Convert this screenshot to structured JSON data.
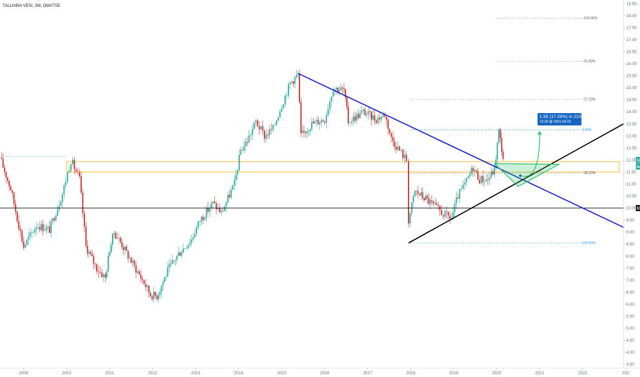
{
  "header": {
    "ticker": "TALLINNA VESI, 2W, OMXTSE"
  },
  "chart_data": {
    "type": "candlestick",
    "title": "TALLINNA VESI, 2W, OMXTSE",
    "x_ticks": [
      "2009",
      "2010",
      "2011",
      "2012",
      "2013",
      "2014",
      "2015",
      "2016",
      "2017",
      "2018",
      "2019",
      "2020",
      "2021",
      "2022",
      "202"
    ],
    "y_ticks": [
      "18.50",
      "18.00",
      "17.50",
      "17.00",
      "16.50",
      "16.00",
      "15.50",
      "15.00",
      "14.50",
      "14.00",
      "13.50",
      "13.00",
      "12.50",
      "12.00",
      "11.50",
      "11.00",
      "10.50",
      "10.00",
      "9.50",
      "9.00",
      "8.50",
      "8.00",
      "7.50",
      "7.00",
      "6.50",
      "6.00",
      "5.50",
      "5.00",
      "4.50",
      "4.00",
      "3.50"
    ],
    "ylim": [
      3.35,
      18.65
    ],
    "xlim": [
      2008.45,
      2022.95
    ],
    "colors": {
      "up": "#26a69a",
      "down": "#c62828",
      "trend_blue": "#1a23c8",
      "trend_black": "#000000",
      "zone": "#f2b51b",
      "green": "#2fbf71",
      "callout": "#1565c0"
    },
    "key_points": [
      [
        2008.45,
        12.1
      ],
      [
        2008.7,
        10.8
      ],
      [
        2009.0,
        8.4
      ],
      [
        2009.3,
        9.3
      ],
      [
        2009.6,
        9.1
      ],
      [
        2009.9,
        10.6
      ],
      [
        2010.1,
        12.0
      ],
      [
        2010.3,
        11.2
      ],
      [
        2010.45,
        8.4
      ],
      [
        2010.7,
        7.5
      ],
      [
        2010.9,
        7.1
      ],
      [
        2011.0,
        8.3
      ],
      [
        2011.1,
        9.0
      ],
      [
        2011.25,
        8.6
      ],
      [
        2011.5,
        7.8
      ],
      [
        2011.8,
        6.9
      ],
      [
        2011.95,
        6.4
      ],
      [
        2012.1,
        6.35
      ],
      [
        2012.35,
        7.4
      ],
      [
        2012.6,
        8.1
      ],
      [
        2012.9,
        8.7
      ],
      [
        2013.1,
        9.5
      ],
      [
        2013.4,
        10.2
      ],
      [
        2013.6,
        9.8
      ],
      [
        2013.9,
        11.0
      ],
      [
        2014.05,
        12.4
      ],
      [
        2014.2,
        12.8
      ],
      [
        2014.4,
        13.6
      ],
      [
        2014.6,
        13.0
      ],
      [
        2014.8,
        13.3
      ],
      [
        2015.0,
        14.3
      ],
      [
        2015.2,
        15.2
      ],
      [
        2015.38,
        15.55
      ],
      [
        2015.45,
        13.0
      ],
      [
        2015.7,
        13.5
      ],
      [
        2016.0,
        13.7
      ],
      [
        2016.2,
        15.0
      ],
      [
        2016.45,
        14.9
      ],
      [
        2016.55,
        13.6
      ],
      [
        2016.9,
        14.0
      ],
      [
        2017.2,
        13.7
      ],
      [
        2017.4,
        13.9
      ],
      [
        2017.55,
        12.9
      ],
      [
        2017.7,
        12.5
      ],
      [
        2017.9,
        12.0
      ],
      [
        2017.95,
        9.5
      ],
      [
        2018.1,
        10.7
      ],
      [
        2018.35,
        10.4
      ],
      [
        2018.6,
        10.0
      ],
      [
        2018.8,
        9.7
      ],
      [
        2018.95,
        9.6
      ],
      [
        2019.1,
        10.5
      ],
      [
        2019.3,
        11.1
      ],
      [
        2019.45,
        11.7
      ],
      [
        2019.6,
        11.2
      ],
      [
        2019.8,
        11.2
      ],
      [
        2019.95,
        11.6
      ],
      [
        2020.05,
        13.2
      ],
      [
        2020.15,
        12.1
      ]
    ],
    "series": [
      {
        "name": "trendline-upper",
        "kind": "line",
        "points": [
          [
            2015.38,
            15.6
          ],
          [
            2022.95,
            9.2
          ]
        ]
      },
      {
        "name": "trendline-lower",
        "kind": "line",
        "points": [
          [
            2017.95,
            8.55
          ],
          [
            2022.95,
            13.5
          ]
        ]
      },
      {
        "name": "support-10",
        "kind": "hline",
        "y": 10.0
      },
      {
        "name": "start-level",
        "kind": "hline",
        "y": 12.15
      }
    ],
    "zone": {
      "x0": 2010.0,
      "x1": 2022.85,
      "y0": 11.5,
      "y1": 11.93
    },
    "fib_levels": [
      {
        "label": "100.00%",
        "y": 17.9,
        "x0": 2020.0,
        "x1": 2021.95,
        "color": "#888888"
      },
      {
        "label": "61.80%",
        "y": 16.1,
        "x0": 2020.0,
        "x1": 2021.95,
        "color": "#888888"
      },
      {
        "label": "27.20%",
        "y": 14.52,
        "x0": 2018.0,
        "x1": 2021.95,
        "color": "#888888"
      },
      {
        "label": "0.00%",
        "y": 13.25,
        "x0": 2018.0,
        "x1": 2021.95,
        "color": "#2196f3"
      },
      {
        "label": "38.20%",
        "y": 11.45,
        "x0": 2018.0,
        "x1": 2021.95,
        "color": "#888888"
      },
      {
        "label": "100.00%",
        "y": 8.55,
        "x0": 2018.0,
        "x1": 2021.95,
        "color": "#2196f3"
      }
    ],
    "fib_label_prefix_neg": "−",
    "projection": {
      "triangle": [
        [
          2019.95,
          11.85
        ],
        [
          2021.45,
          11.82
        ],
        [
          2020.5,
          10.9
        ]
      ],
      "dot": [
        2020.55,
        11.35
      ],
      "arrow_to": [
        2021.0,
        13.25
      ],
      "callout_main": "1.95 (17.28%) in 210d",
      "callout_sub": "13.20 @ 2021-02-01"
    },
    "price_badges": [
      {
        "label": "12.05",
        "y": 12.0,
        "color": "#26a69a"
      },
      {
        "label": "3d 6h",
        "y": 11.73,
        "color": "#26a69a"
      },
      {
        "label": "10.00",
        "y": 10.0,
        "color": "#131722"
      }
    ]
  }
}
